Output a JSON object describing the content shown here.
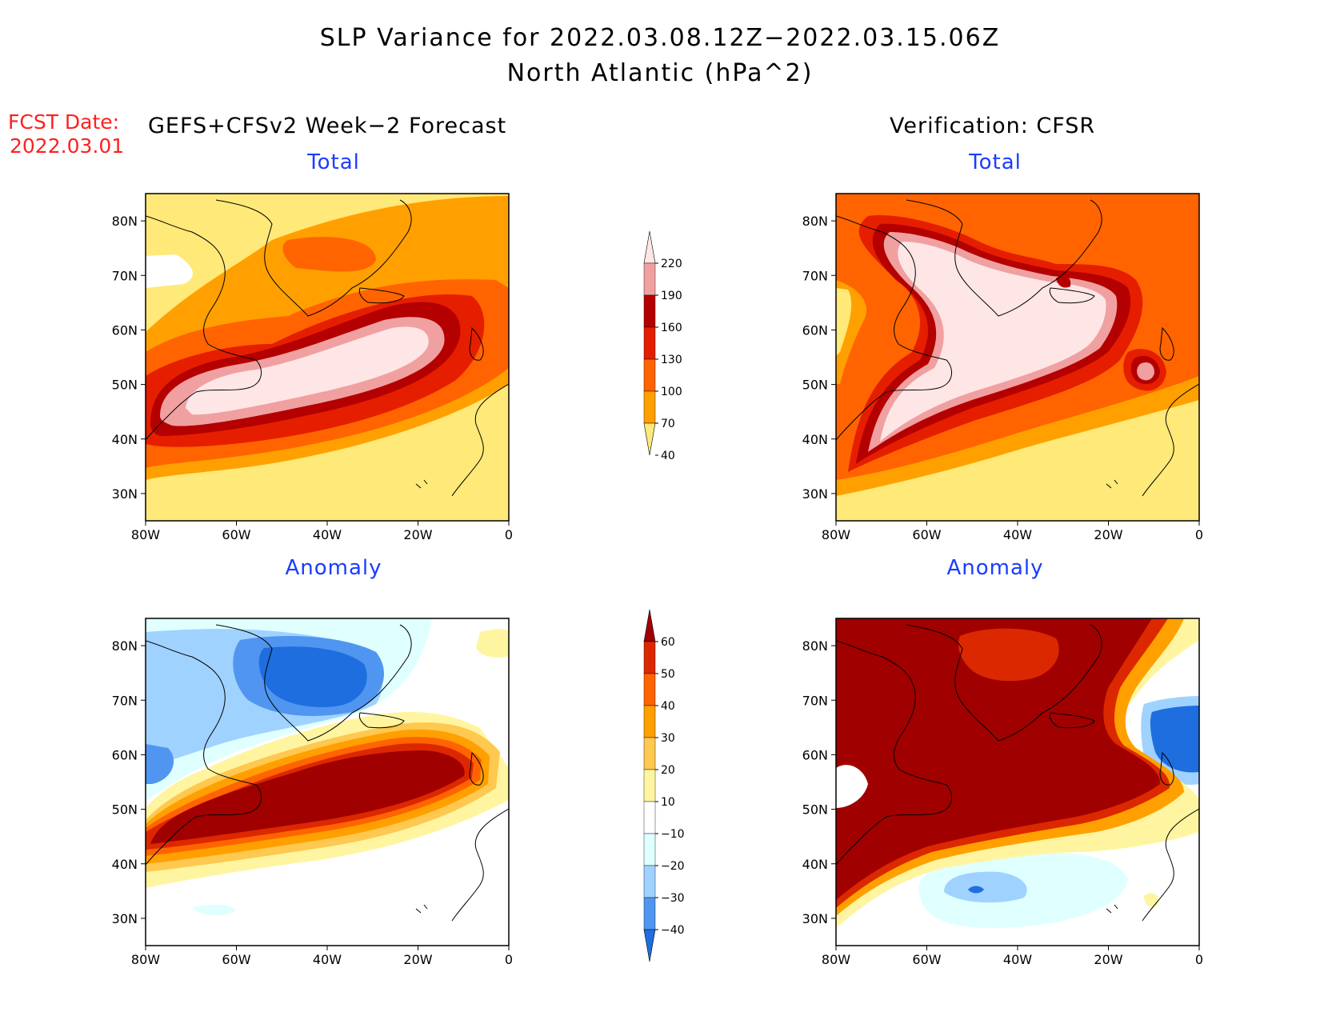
{
  "header": {
    "title_line1": "SLP Variance for 2022.03.08.12Z−2022.03.15.06Z",
    "title_line2": "North Atlantic (hPa^2)"
  },
  "forecast_info": {
    "label": "FCST Date:",
    "date": "2022.03.01"
  },
  "columns": {
    "forecast": "GEFS+CFSv2 Week−2 Forecast",
    "verification": "Verification: CFSR"
  },
  "panels": [
    {
      "id": "forecast-total",
      "title": "Total"
    },
    {
      "id": "verification-total",
      "title": "Total"
    },
    {
      "id": "forecast-anomaly",
      "title": "Anomaly"
    },
    {
      "id": "verification-anomaly",
      "title": "Anomaly"
    }
  ],
  "axes": {
    "lon_labels": [
      "80W",
      "60W",
      "40W",
      "20W",
      "0"
    ],
    "lon_values": [
      -80,
      -60,
      -40,
      -20,
      0
    ],
    "lat_labels": [
      "80N",
      "70N",
      "60N",
      "50N",
      "40N",
      "30N"
    ],
    "lat_values": [
      80,
      70,
      60,
      50,
      40,
      30
    ],
    "lon_range": [
      -80,
      0
    ],
    "lat_range": [
      25,
      85
    ]
  },
  "colorbars": {
    "total": {
      "levels": [
        "40",
        "70",
        "100",
        "130",
        "160",
        "190",
        "220"
      ],
      "colors": [
        "#ffe978",
        "#ffa000",
        "#ff6400",
        "#e61e00",
        "#b40000",
        "#f0a0a0",
        "#ffe6e6"
      ]
    },
    "anomaly": {
      "levels": [
        "60",
        "50",
        "40",
        "30",
        "20",
        "10",
        "−10",
        "−20",
        "−30",
        "−40"
      ],
      "colors": [
        "#a00000",
        "#dc2800",
        "#ff6400",
        "#ffa000",
        "#ffc850",
        "#fff5a0",
        "#ffffff",
        "#e0ffff",
        "#a0d2ff",
        "#5096f0",
        "#1e6ee0"
      ]
    }
  },
  "colors": {
    "total_background": "#ffe978",
    "anomaly_background": "#ffffff",
    "panel_title": "#1a3cff",
    "fcst_date": "#ff2020"
  }
}
